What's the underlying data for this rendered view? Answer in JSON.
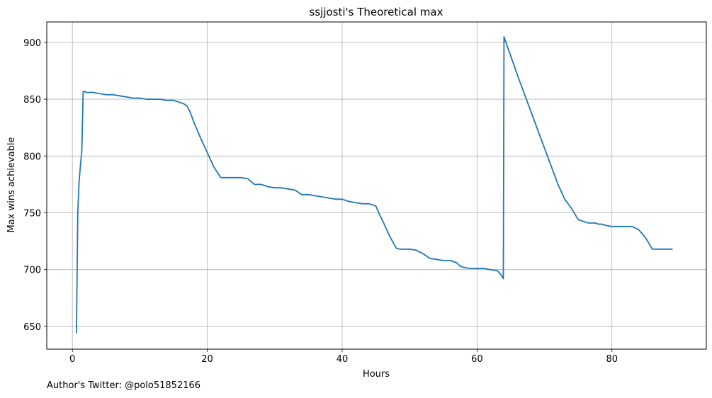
{
  "footer_text": "Author's Twitter: @polo51852166",
  "chart_data": {
    "type": "line",
    "title": "ssjjosti's Theoretical max",
    "xlabel": "Hours",
    "ylabel": "Max wins achievable",
    "xlim": [
      -3.8,
      94.0
    ],
    "ylim": [
      630,
      918
    ],
    "xticks": [
      0,
      20,
      40,
      60,
      80
    ],
    "yticks": [
      650,
      700,
      750,
      800,
      850,
      900
    ],
    "grid": true,
    "line_color": "#1f77b4",
    "series": [
      {
        "x": [
          0.6,
          0.8,
          1.0,
          1.2,
          1.4,
          1.6,
          1.8,
          2.0,
          2.5,
          3.0,
          4.0,
          5.0,
          6.0,
          7.0,
          8.0,
          9.0,
          10.0,
          11.0,
          12.0,
          13.0,
          14.0,
          15.0,
          16.0,
          16.5,
          17.0,
          17.5,
          18.0,
          19.0,
          20.0,
          21.0,
          22.0,
          22.6,
          23.0,
          24.0,
          25.0,
          26.0,
          27.0,
          27.5,
          28.0,
          29.0,
          30.0,
          31.0,
          32.0,
          33.0,
          34.0,
          35.0,
          36.0,
          37.0,
          38.0,
          39.0,
          40.0,
          41.0,
          42.0,
          43.0,
          44.0,
          45.0,
          45.5,
          46.0,
          47.0,
          48.0,
          48.5,
          49.0,
          50.0,
          51.0,
          52.0,
          53.0,
          54.0,
          55.0,
          56.0,
          57.0,
          57.5,
          58.0,
          59.0,
          60.0,
          61.0,
          62.0,
          63.0,
          63.5,
          63.9,
          64.0,
          65.0,
          66.0,
          67.0,
          68.0,
          69.0,
          70.0,
          71.0,
          72.0,
          73.0,
          74.0,
          75.0,
          76.0,
          76.5,
          77.0,
          77.5,
          78.0,
          78.5,
          79.0,
          80.0,
          81.0,
          82.0,
          83.0,
          84.0,
          85.0,
          86.0,
          87.0,
          87.5,
          88.0,
          89.0
        ],
        "y": [
          644,
          750,
          778,
          792,
          805,
          857,
          857,
          856,
          856,
          856,
          855,
          854,
          854,
          853,
          852,
          851,
          851,
          850,
          850,
          850,
          849,
          849,
          847,
          846,
          844,
          838,
          830,
          816,
          803,
          790,
          781,
          781,
          781,
          781,
          781,
          780,
          775,
          775,
          775,
          773,
          772,
          772,
          771,
          770,
          766,
          766,
          765,
          764,
          763,
          762,
          762,
          760,
          759,
          758,
          758,
          756,
          749,
          743,
          730,
          719,
          718,
          718,
          718,
          717,
          714,
          710,
          709,
          708,
          708,
          706,
          703,
          702,
          701,
          701,
          701,
          700,
          699,
          696,
          692,
          905,
          888,
          871,
          855,
          839,
          823,
          807,
          791,
          775,
          762,
          754,
          744,
          742,
          741,
          741,
          741,
          740,
          740,
          739,
          738,
          738,
          738,
          738,
          735,
          728,
          718,
          718,
          718,
          718,
          718
        ]
      }
    ]
  }
}
